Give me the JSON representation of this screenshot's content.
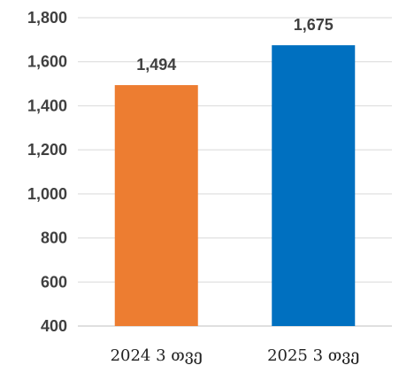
{
  "chart_data": {
    "type": "bar",
    "categories": [
      "2024 3 თვე",
      "2025 3 თვე"
    ],
    "values": [
      1494,
      1675
    ],
    "data_labels": [
      "1,494",
      "1,675"
    ],
    "tick_labels": [
      "400",
      "600",
      "800",
      "1,000",
      "1,200",
      "1,400",
      "1,600",
      "1,800"
    ],
    "ylim": [
      400,
      1800
    ],
    "grid": true,
    "colors": [
      "#ed7d31",
      "#0070c0"
    ]
  }
}
